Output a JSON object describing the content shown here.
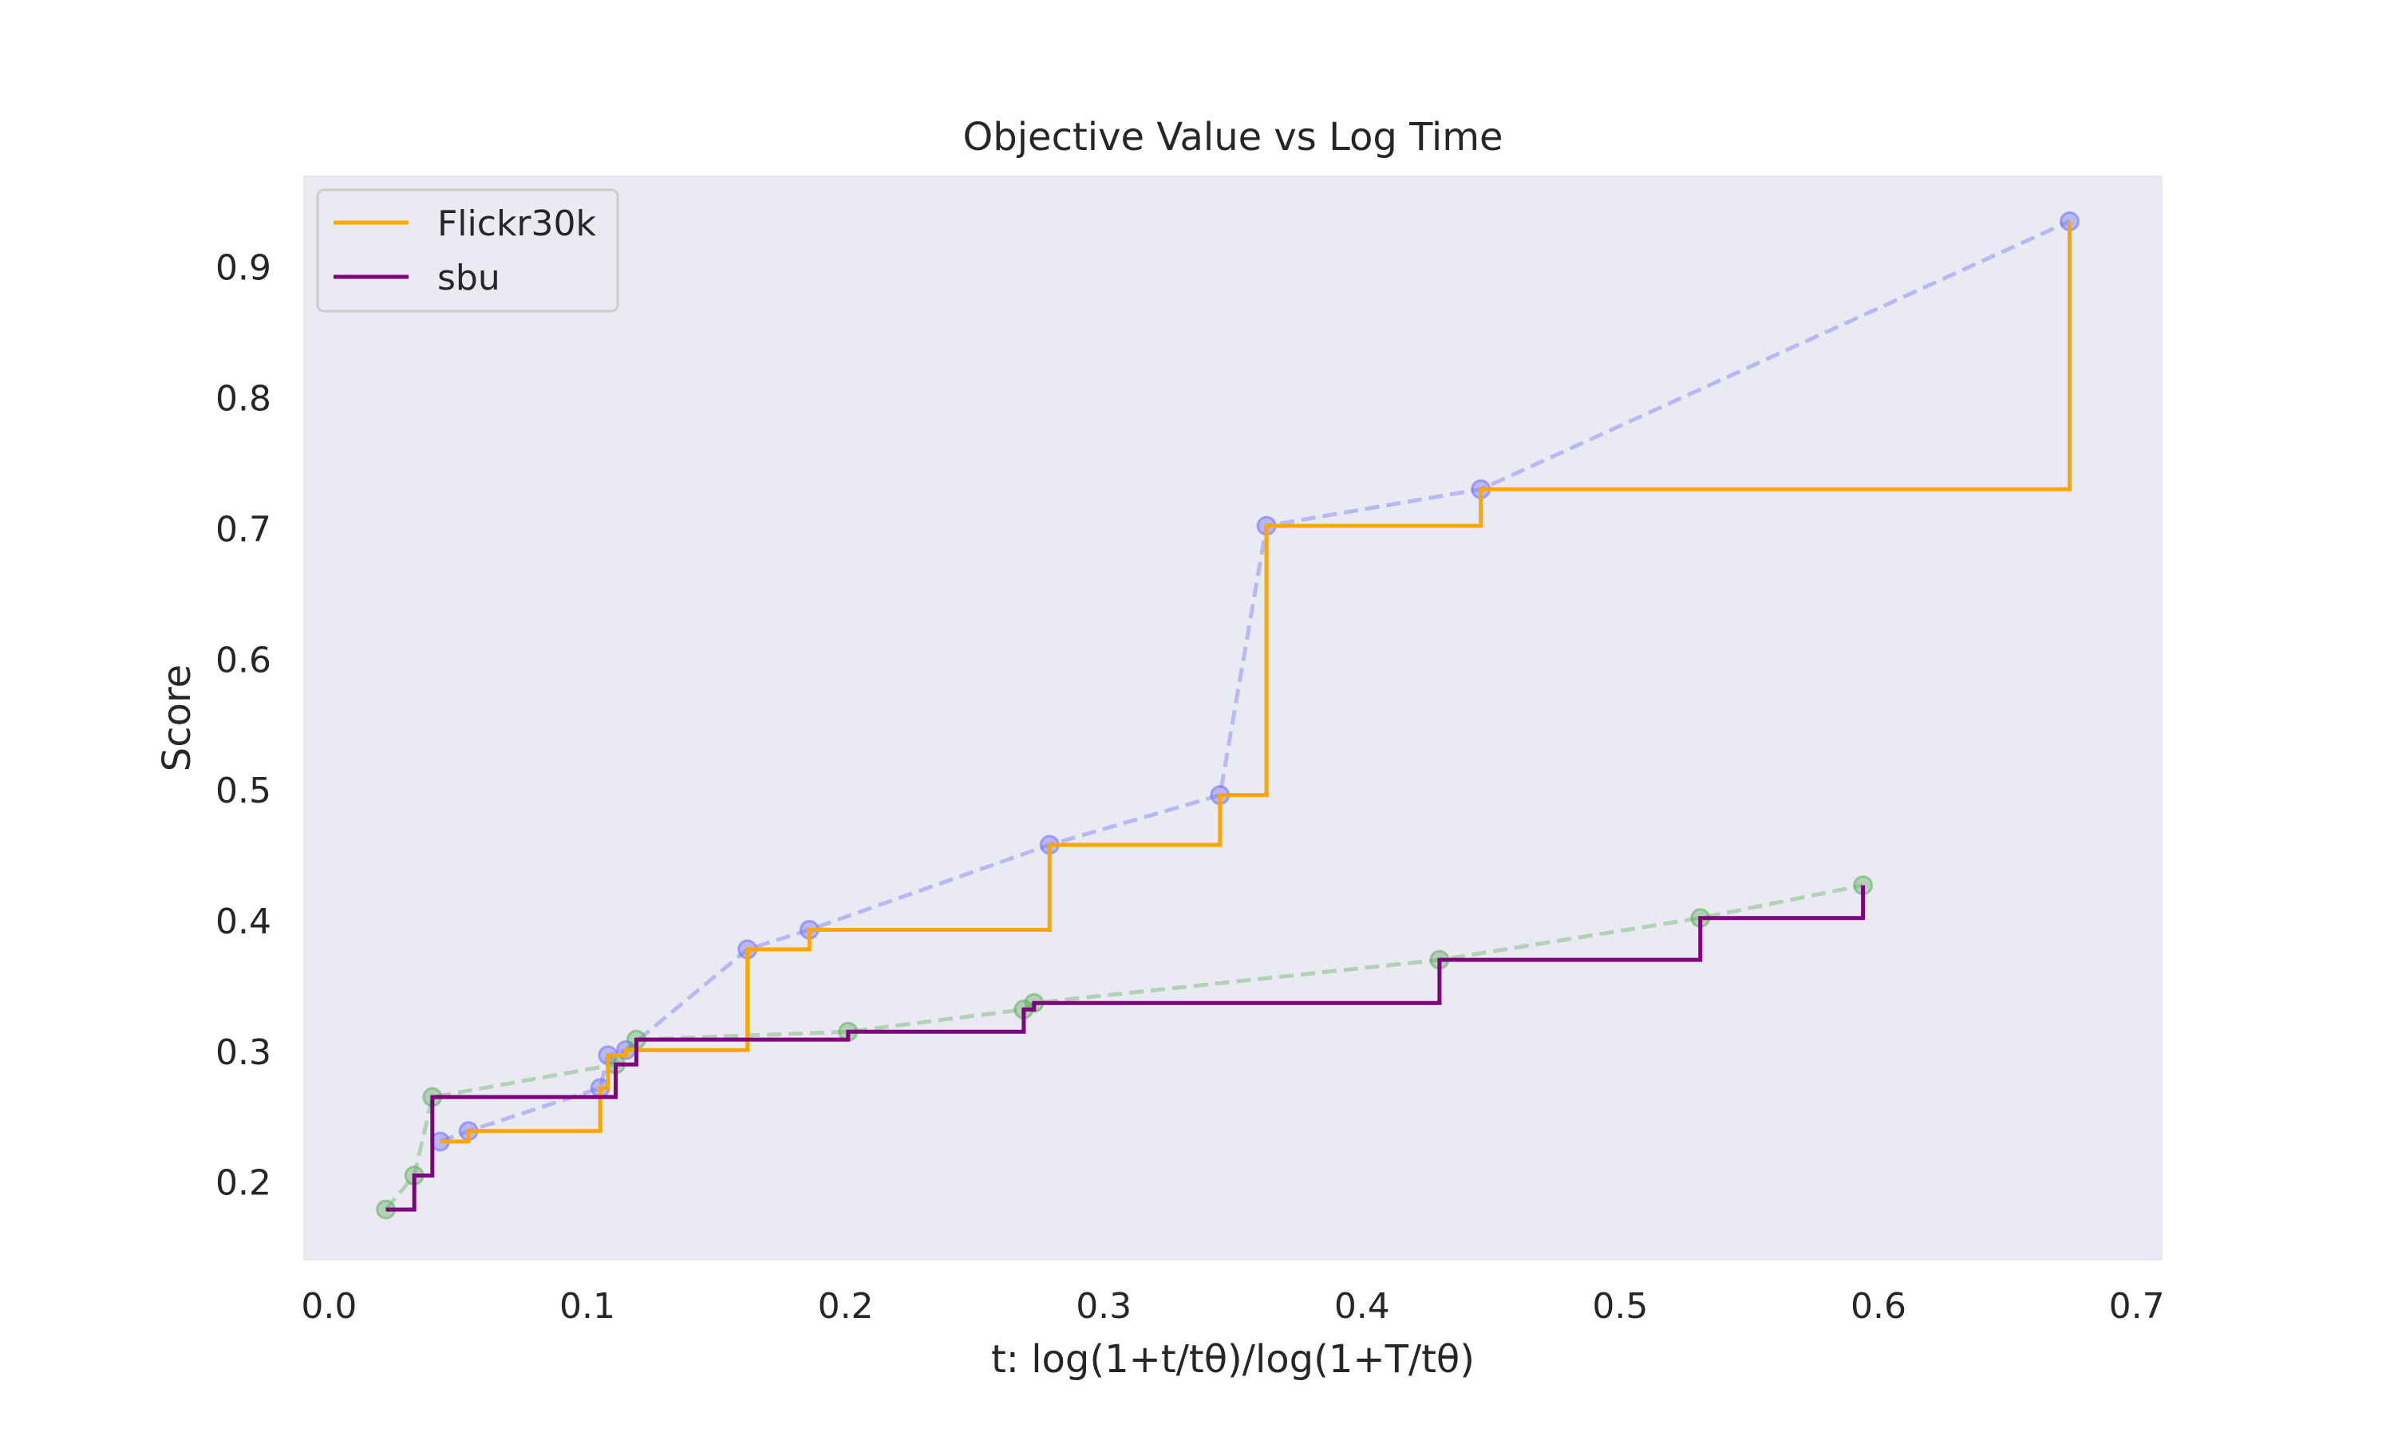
{
  "chart_data": {
    "type": "line",
    "title": "Objective Value vs Log Time",
    "xlabel": "t: log(1+t/tθ)/log(1+T/tθ)",
    "ylabel": "Score",
    "xlim": [
      -0.01,
      0.71
    ],
    "ylim": [
      0.14,
      0.97
    ],
    "xticks": [
      0.0,
      0.1,
      0.2,
      0.3,
      0.4,
      0.5,
      0.6,
      0.7
    ],
    "xtick_labels": [
      "0.0",
      "0.1",
      "0.2",
      "0.3",
      "0.4",
      "0.5",
      "0.6",
      "0.7"
    ],
    "yticks": [
      0.2,
      0.3,
      0.4,
      0.5,
      0.6,
      0.7,
      0.8,
      0.9
    ],
    "ytick_labels": [
      "0.2",
      "0.3",
      "0.4",
      "0.5",
      "0.6",
      "0.7",
      "0.8",
      "0.9"
    ],
    "grid": false,
    "legend_position": "top-left",
    "series": [
      {
        "name": "Flickr30k",
        "step_color": "#FFA500",
        "point_color": "#6E6EFF",
        "x": [
          0.043,
          0.054,
          0.105,
          0.108,
          0.115,
          0.162,
          0.186,
          0.279,
          0.345,
          0.363,
          0.446,
          0.674
        ],
        "y": [
          0.231,
          0.239,
          0.272,
          0.297,
          0.301,
          0.378,
          0.393,
          0.458,
          0.496,
          0.702,
          0.73,
          0.935
        ]
      },
      {
        "name": "sbu",
        "step_color": "#800080",
        "point_color": "#5FAD5F",
        "x": [
          0.022,
          0.033,
          0.04,
          0.111,
          0.119,
          0.201,
          0.269,
          0.273,
          0.43,
          0.531,
          0.594
        ],
        "y": [
          0.179,
          0.205,
          0.265,
          0.29,
          0.309,
          0.315,
          0.332,
          0.337,
          0.37,
          0.402,
          0.427
        ]
      }
    ]
  }
}
